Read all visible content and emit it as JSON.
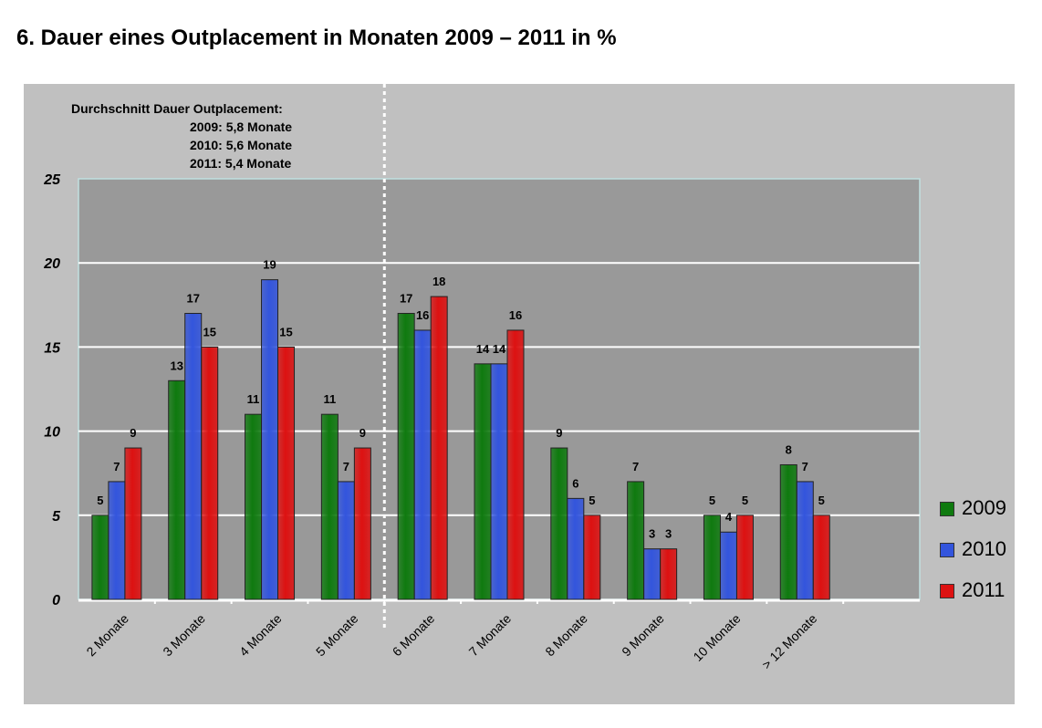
{
  "page": {
    "title": "6.  Dauer eines Outplacement in Monaten 2009 – 2011 in %"
  },
  "annotation": {
    "heading": "Durchschnitt Dauer Outplacement:",
    "lines": [
      "2009:  5,8 Monate",
      "2010:  5,6 Monate",
      "2011:  5,4 Monate"
    ]
  },
  "colors": {
    "plot_background": "#999999",
    "frame_background": "#c0c0c0",
    "gridline": "#ffffff",
    "plot_border": "#bfe0e0",
    "divider": "#ffffff"
  },
  "chart_data": {
    "type": "bar",
    "title": "6.  Dauer eines Outplacement in Monaten 2009 – 2011 in %",
    "xlabel": "",
    "ylabel": "",
    "ylim": [
      0,
      25
    ],
    "yticks": [
      "0",
      "5",
      "10",
      "15",
      "20",
      "25"
    ],
    "ytick_values": [
      0,
      5,
      10,
      15,
      20,
      25
    ],
    "grid": true,
    "legend_position": "right",
    "categories": [
      "2 Monate",
      "3 Monate",
      "4 Monate",
      "5 Monate",
      "6 Monate",
      "7 Monate",
      "8 Monate",
      "9 Monate",
      "10 Monate",
      "> 12 Monate"
    ],
    "series": [
      {
        "name": "2009",
        "color": "#0f7a0f",
        "values": [
          5,
          13,
          11,
          11,
          17,
          14,
          9,
          7,
          5,
          8
        ]
      },
      {
        "name": "2010",
        "color": "#3355dd",
        "values": [
          7,
          17,
          19,
          7,
          16,
          14,
          6,
          3,
          4,
          7
        ]
      },
      {
        "name": "2011",
        "color": "#dd1111",
        "values": [
          9,
          15,
          15,
          9,
          18,
          16,
          5,
          3,
          5,
          5
        ]
      }
    ],
    "divider_after_category": "5 Monate"
  }
}
